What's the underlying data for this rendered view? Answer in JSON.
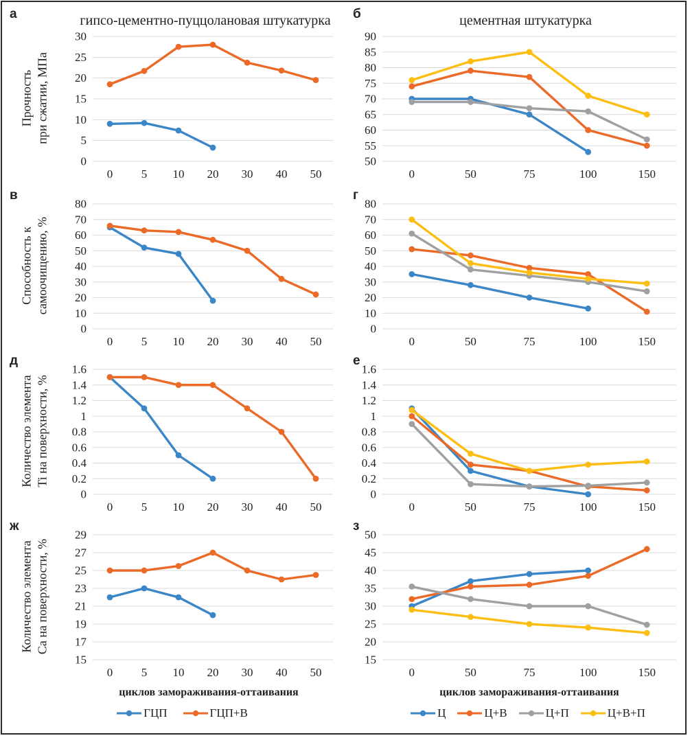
{
  "figure": {
    "left_title": "гипсо-цементно-пуццолановая штукатурка",
    "right_title": "цементная штукатурка",
    "x_axis_title": "циклов замораживания-оттаивания"
  },
  "colors": {
    "blue": "#3A86C6",
    "orange": "#EB6A28",
    "gray": "#9EA0A2",
    "yellow": "#FCBE12",
    "gridline": "#d9d9d9",
    "text": "#1f1f1f"
  },
  "legend_left": [
    {
      "label": "ГЦП",
      "color": "blue"
    },
    {
      "label": "ГЦП+В",
      "color": "orange"
    }
  ],
  "legend_right": [
    {
      "label": "Ц",
      "color": "blue"
    },
    {
      "label": "Ц+В",
      "color": "orange"
    },
    {
      "label": "Ц+П",
      "color": "gray"
    },
    {
      "label": "Ц+В+П",
      "color": "yellow"
    }
  ],
  "chart_data": [
    {
      "id": "a",
      "panel": "а",
      "type": "line",
      "ylabel_line1": "Прочность",
      "ylabel_line2": "при сжатии, МПа",
      "ylim": [
        0,
        30
      ],
      "ystep": 5,
      "grid": true,
      "categories": [
        "0",
        "5",
        "10",
        "20",
        "30",
        "40",
        "50"
      ],
      "series": [
        {
          "name": "ГЦП",
          "color": "blue",
          "values": [
            9,
            9.2,
            7.4,
            3.3
          ]
        },
        {
          "name": "ГЦП+В",
          "color": "orange",
          "values": [
            18.5,
            21.7,
            27.5,
            28,
            23.7,
            21.8,
            19.5
          ]
        }
      ]
    },
    {
      "id": "b",
      "panel": "б",
      "type": "line",
      "ylim": [
        50,
        90
      ],
      "ystep": 5,
      "grid": true,
      "categories": [
        "0",
        "50",
        "75",
        "100",
        "150"
      ],
      "series": [
        {
          "name": "Ц",
          "color": "blue",
          "values": [
            70,
            70,
            65,
            53
          ]
        },
        {
          "name": "Ц+В",
          "color": "orange",
          "values": [
            74,
            79,
            77,
            60,
            55
          ]
        },
        {
          "name": "Ц+П",
          "color": "gray",
          "values": [
            69,
            69,
            67,
            66,
            57
          ]
        },
        {
          "name": "Ц+В+П",
          "color": "yellow",
          "values": [
            76,
            82,
            85,
            71,
            65
          ]
        }
      ]
    },
    {
      "id": "v",
      "panel": "в",
      "type": "line",
      "ylabel_line1": "Способность к",
      "ylabel_line2": "самоочищению, %",
      "ylim": [
        0,
        80
      ],
      "ystep": 10,
      "grid": true,
      "categories": [
        "0",
        "5",
        "10",
        "20",
        "30",
        "40",
        "50"
      ],
      "series": [
        {
          "name": "ГЦП",
          "color": "blue",
          "values": [
            65,
            52,
            48,
            18
          ]
        },
        {
          "name": "ГЦП+В",
          "color": "orange",
          "values": [
            66,
            63,
            62,
            57,
            50,
            32,
            22
          ]
        }
      ]
    },
    {
      "id": "g",
      "panel": "г",
      "type": "line",
      "ylim": [
        0,
        80
      ],
      "ystep": 10,
      "grid": true,
      "categories": [
        "0",
        "50",
        "75",
        "100",
        "150"
      ],
      "series": [
        {
          "name": "Ц",
          "color": "blue",
          "values": [
            35,
            28,
            20,
            13
          ]
        },
        {
          "name": "Ц+В",
          "color": "orange",
          "values": [
            51,
            47,
            39,
            35,
            11
          ]
        },
        {
          "name": "Ц+П",
          "color": "gray",
          "values": [
            61,
            38,
            34,
            30,
            24
          ]
        },
        {
          "name": "Ц+В+П",
          "color": "yellow",
          "values": [
            70,
            42,
            36,
            32,
            29
          ]
        }
      ]
    },
    {
      "id": "d",
      "panel": "д",
      "type": "line",
      "ylabel_line1": "Количество элемента",
      "ylabel_line2": "Ti на поверхности, %",
      "ylim": [
        0,
        1.6
      ],
      "ystep": 0.2,
      "grid": true,
      "categories": [
        "0",
        "5",
        "10",
        "20",
        "30",
        "40",
        "50"
      ],
      "series": [
        {
          "name": "ГЦП",
          "color": "blue",
          "values": [
            1.5,
            1.1,
            0.5,
            0.2
          ]
        },
        {
          "name": "ГЦП+В",
          "color": "orange",
          "values": [
            1.5,
            1.5,
            1.4,
            1.4,
            1.1,
            0.8,
            0.2
          ]
        }
      ]
    },
    {
      "id": "e",
      "panel": "е",
      "type": "line",
      "ylim": [
        0,
        1.6
      ],
      "ystep": 0.2,
      "grid": true,
      "categories": [
        "0",
        "50",
        "75",
        "100",
        "150"
      ],
      "series": [
        {
          "name": "Ц",
          "color": "blue",
          "values": [
            1.1,
            0.3,
            0.1,
            0
          ]
        },
        {
          "name": "Ц+В",
          "color": "orange",
          "values": [
            1,
            0.38,
            0.3,
            0.1,
            0.05
          ]
        },
        {
          "name": "Ц+П",
          "color": "gray",
          "values": [
            0.9,
            0.13,
            0.1,
            0.11,
            0.15
          ]
        },
        {
          "name": "Ц+В+П",
          "color": "yellow",
          "values": [
            1.08,
            0.52,
            0.3,
            0.38,
            0.42
          ]
        }
      ]
    },
    {
      "id": "zh",
      "panel": "ж",
      "type": "line",
      "ylabel_line1": "Количество элемента",
      "ylabel_line2": "Са на поверхности, %",
      "ylim": [
        15,
        29
      ],
      "ystep": 2,
      "grid": true,
      "categories": [
        "0",
        "5",
        "10",
        "20",
        "30",
        "40",
        "50"
      ],
      "series": [
        {
          "name": "ГЦП",
          "color": "blue",
          "values": [
            22,
            23,
            22,
            20
          ]
        },
        {
          "name": "ГЦП+В",
          "color": "orange",
          "values": [
            25,
            25,
            25.5,
            27,
            25,
            24,
            24.5
          ]
        }
      ]
    },
    {
      "id": "z",
      "panel": "з",
      "type": "line",
      "ylim": [
        15,
        50
      ],
      "ystep": 5,
      "grid": true,
      "categories": [
        "0",
        "50",
        "75",
        "100",
        "150"
      ],
      "series": [
        {
          "name": "Ц",
          "color": "blue",
          "values": [
            30,
            37,
            39,
            40
          ]
        },
        {
          "name": "Ц+В",
          "color": "orange",
          "values": [
            32,
            35.5,
            36,
            38.5,
            46
          ]
        },
        {
          "name": "Ц+П",
          "color": "gray",
          "values": [
            35.5,
            32,
            30,
            30,
            24.8
          ]
        },
        {
          "name": "Ц+В+П",
          "color": "yellow",
          "values": [
            29,
            27,
            25,
            24,
            22.5
          ]
        }
      ]
    }
  ]
}
